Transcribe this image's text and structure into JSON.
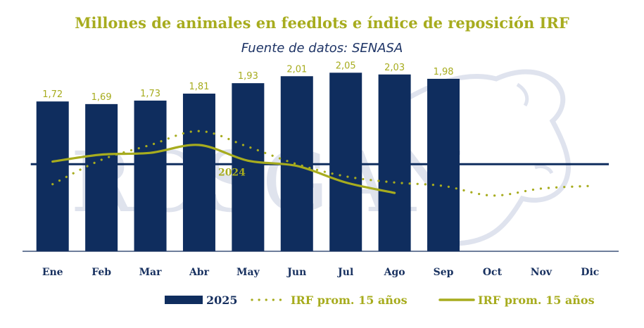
{
  "title": "Millones de animales en feedlots e índice de reposición IRF",
  "subtitle": "Fuente de datos: SENASA",
  "watermark": "ROSGAN",
  "colors": {
    "bar": "#0f2d5e",
    "line": "#a7ac1e",
    "title": "#a7ac1e",
    "subtitle": "#1e3466",
    "axis": "#17305f",
    "watermark": "#aeb6d2"
  },
  "chart_data": {
    "type": "bar",
    "categories": [
      "Ene",
      "Feb",
      "Mar",
      "Abr",
      "May",
      "Jun",
      "Jul",
      "Ago",
      "Sep",
      "Oct",
      "Nov",
      "Dic"
    ],
    "series": [
      {
        "name": "2025",
        "type": "bar",
        "values": [
          1.72,
          1.69,
          1.73,
          1.81,
          1.93,
          2.01,
          2.05,
          2.03,
          1.98,
          null,
          null,
          null
        ],
        "labels": [
          "1,72",
          "1,69",
          "1,73",
          "1,81",
          "1,93",
          "2,01",
          "2,05",
          "2,03",
          "1,98",
          "",
          "",
          ""
        ]
      },
      {
        "name": "IRF prom. 15 años",
        "type": "line",
        "style": "dotted",
        "values": [
          0.77,
          1.05,
          1.22,
          1.38,
          1.2,
          1.0,
          0.86,
          0.79,
          0.75,
          0.64,
          0.72,
          0.75
        ]
      },
      {
        "name": "IRF prom. 15 años",
        "type": "line",
        "style": "solid",
        "values": [
          1.03,
          1.11,
          1.13,
          1.22,
          1.04,
          0.98,
          0.79,
          0.67,
          null,
          null,
          null,
          null
        ]
      }
    ],
    "reference_line": {
      "label": "2024",
      "value": 1.0
    },
    "ylim": [
      0,
      2.4
    ],
    "legend_position": "bottom",
    "grid": false
  },
  "legend": [
    {
      "label": "2025",
      "symbol": "bar"
    },
    {
      "label": "IRF prom. 15 años",
      "symbol": "dotted"
    },
    {
      "label": "IRF prom. 15 años",
      "symbol": "solid"
    }
  ]
}
